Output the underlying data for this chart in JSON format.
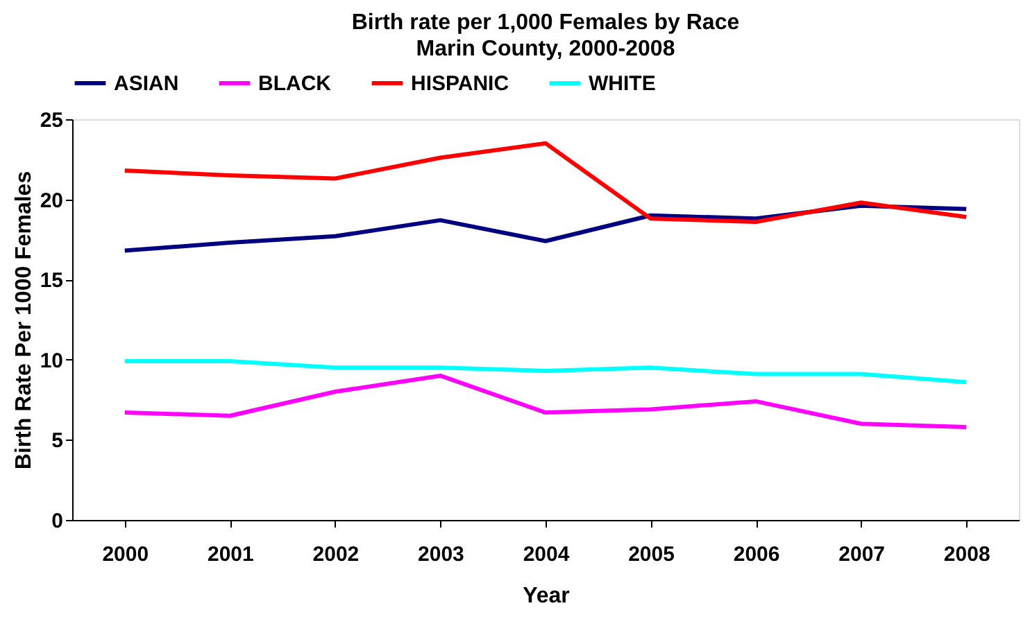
{
  "chart_data": {
    "type": "line",
    "title": "Birth rate per 1,000 Females by Race",
    "subtitle": "Marin County, 2000-2008",
    "xlabel": "Year",
    "ylabel": "Birth Rate Per 1000 Females",
    "categories": [
      "2000",
      "2001",
      "2002",
      "2003",
      "2004",
      "2005",
      "2006",
      "2007",
      "2008"
    ],
    "series": [
      {
        "name": "ASIAN",
        "color": "#000080",
        "values": [
          16.8,
          17.3,
          17.7,
          18.7,
          17.4,
          19.0,
          18.8,
          19.6,
          19.4
        ]
      },
      {
        "name": "BLACK",
        "color": "#ff00ff",
        "values": [
          6.7,
          6.5,
          8.0,
          9.0,
          6.7,
          6.9,
          7.4,
          6.0,
          5.8
        ]
      },
      {
        "name": "HISPANIC",
        "color": "#ff0000",
        "values": [
          21.8,
          21.5,
          21.3,
          22.6,
          23.5,
          18.8,
          18.6,
          19.8,
          18.9
        ]
      },
      {
        "name": "WHITE",
        "color": "#00ffff",
        "values": [
          9.9,
          9.9,
          9.5,
          9.5,
          9.3,
          9.5,
          9.1,
          9.1,
          8.6
        ]
      }
    ],
    "ylim": [
      0,
      25
    ],
    "yticks": [
      0,
      5,
      10,
      15,
      20,
      25
    ],
    "grid": false,
    "legend": "top",
    "marker": "none",
    "line_style": "solid"
  }
}
